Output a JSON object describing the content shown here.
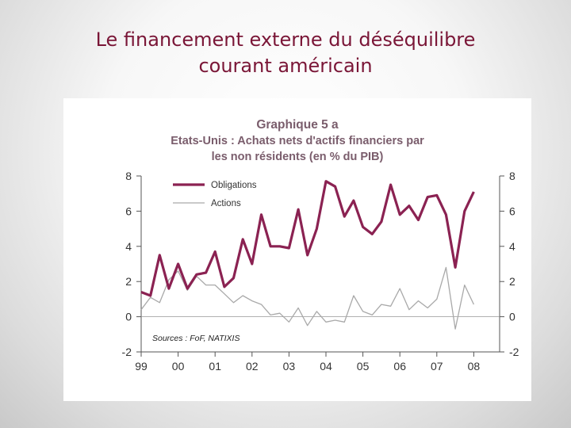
{
  "slide": {
    "title_line1": "Le financement externe du déséquilibre",
    "title_line2": "courant américain"
  },
  "colors": {
    "obligations": "#8b2252",
    "actions": "#a9a9a9",
    "title": "#7a1637",
    "chart_title": "#7a5d6c"
  },
  "chart_data": {
    "type": "line",
    "title_lines": [
      "Graphique 5 a",
      "Etats-Unis : Achats nets d'actifs financiers par",
      "les non résidents (en % du PIB)"
    ],
    "source": "Sources : FoF, NATIXIS",
    "x_tick_labels": [
      "99",
      "00",
      "01",
      "02",
      "03",
      "04",
      "05",
      "06",
      "07",
      "08"
    ],
    "y_ticks": [
      -2,
      0,
      2,
      4,
      6,
      8
    ],
    "ylim": [
      -2,
      8
    ],
    "legend_position": "top-left",
    "x": [
      1999.0,
      1999.25,
      1999.5,
      1999.75,
      2000.0,
      2000.25,
      2000.5,
      2000.75,
      2001.0,
      2001.25,
      2001.5,
      2001.75,
      2002.0,
      2002.25,
      2002.5,
      2002.75,
      2003.0,
      2003.25,
      2003.5,
      2003.75,
      2004.0,
      2004.25,
      2004.5,
      2004.75,
      2005.0,
      2005.25,
      2005.5,
      2005.75,
      2006.0,
      2006.25,
      2006.5,
      2006.75,
      2007.0,
      2007.25,
      2007.5,
      2007.75,
      2008.0
    ],
    "series": [
      {
        "name": "Obligations",
        "values": [
          1.4,
          1.2,
          3.5,
          1.6,
          3.0,
          1.6,
          2.4,
          2.5,
          3.7,
          1.7,
          2.2,
          4.4,
          3.0,
          5.8,
          4.0,
          4.0,
          3.9,
          6.1,
          3.5,
          5.0,
          7.7,
          7.4,
          5.7,
          6.6,
          5.1,
          4.7,
          5.4,
          7.5,
          5.8,
          6.3,
          5.5,
          6.8,
          6.9,
          5.8,
          2.8,
          6.0,
          7.1
        ]
      },
      {
        "name": "Actions",
        "values": [
          0.4,
          1.1,
          0.8,
          2.1,
          2.6,
          1.5,
          2.3,
          1.8,
          1.8,
          1.3,
          0.8,
          1.2,
          0.9,
          0.7,
          0.1,
          0.2,
          -0.3,
          0.5,
          -0.5,
          0.3,
          -0.3,
          -0.2,
          -0.3,
          1.2,
          0.3,
          0.1,
          0.7,
          0.6,
          1.6,
          0.4,
          0.9,
          0.5,
          1.0,
          2.8,
          -0.7,
          1.8,
          0.7
        ]
      }
    ]
  }
}
